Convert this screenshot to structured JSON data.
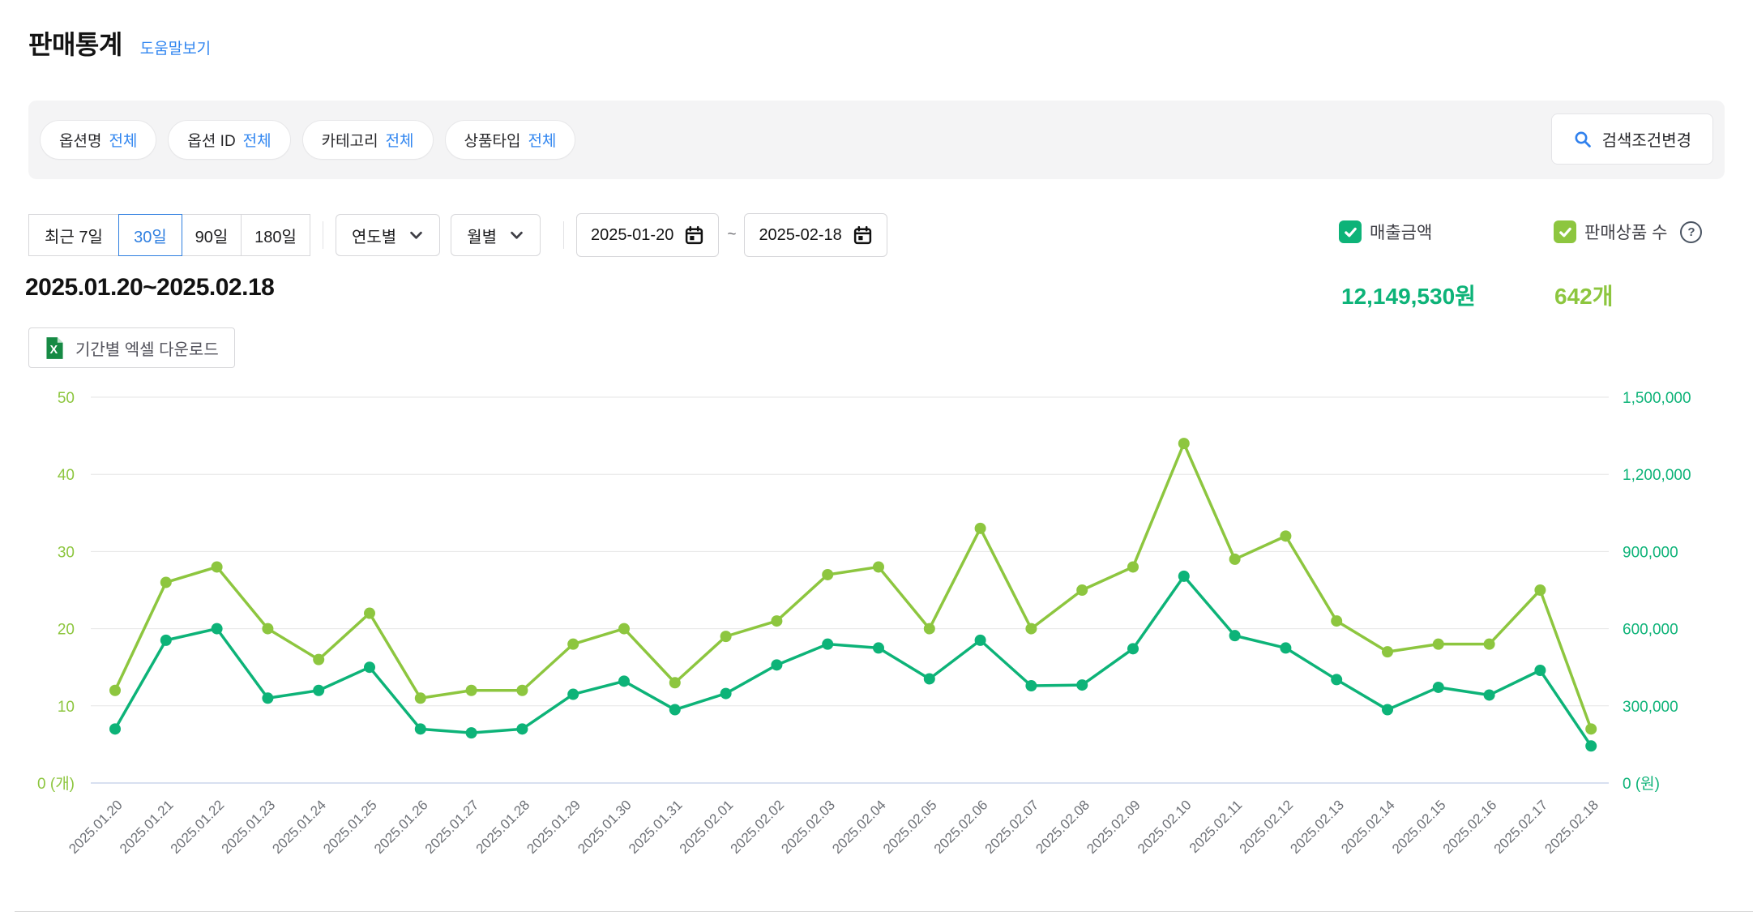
{
  "page": {
    "title": "판매통계",
    "help_link": "도움말보기"
  },
  "filters": {
    "pills": [
      {
        "label": "옵션명",
        "value": "전체"
      },
      {
        "label": "옵션 ID",
        "value": "전체"
      },
      {
        "label": "카테고리",
        "value": "전체"
      },
      {
        "label": "상품타입",
        "value": "전체"
      }
    ],
    "search_button": "검색조건변경"
  },
  "period": {
    "buttons": [
      "최근 7일",
      "30일",
      "90일",
      "180일"
    ],
    "selected": "30일",
    "dropdowns": [
      {
        "label": "연도별"
      },
      {
        "label": "월별"
      }
    ],
    "date_from": "2025-01-20",
    "date_to": "2025-02-18",
    "range_separator": "~"
  },
  "legend": {
    "revenue": {
      "label": "매출금액",
      "checked": true,
      "color": "#0db378"
    },
    "items_sold": {
      "label": "판매상품 수",
      "checked": true,
      "color": "#8dc63f"
    }
  },
  "summary": {
    "date_range": "2025.01.20~2025.02.18",
    "revenue_total": "12,149,530원",
    "items_total": "642개"
  },
  "excel_button": "기간별 엑셀 다운로드",
  "chart_data": {
    "type": "line",
    "grid": true,
    "x": [
      "2025.01.20",
      "2025.01.21",
      "2025.01.22",
      "2025.01.23",
      "2025.01.24",
      "2025.01.25",
      "2025.01.26",
      "2025.01.27",
      "2025.01.28",
      "2025.01.29",
      "2025.01.30",
      "2025.01.31",
      "2025.02.01",
      "2025.02.02",
      "2025.02.03",
      "2025.02.04",
      "2025.02.05",
      "2025.02.06",
      "2025.02.07",
      "2025.02.08",
      "2025.02.09",
      "2025.02.10",
      "2025.02.11",
      "2025.02.12",
      "2025.02.13",
      "2025.02.14",
      "2025.02.15",
      "2025.02.16",
      "2025.02.17",
      "2025.02.18"
    ],
    "series": [
      {
        "name": "매출금액",
        "axis": "right",
        "color": "#0db378",
        "values": [
          210000,
          555000,
          600000,
          330000,
          360000,
          450000,
          210000,
          195000,
          210000,
          345000,
          396000,
          285000,
          348000,
          459000,
          540000,
          525000,
          405000,
          555000,
          378000,
          381000,
          522000,
          804000,
          573000,
          525000,
          402000,
          285000,
          372000,
          342000,
          438000,
          144000
        ]
      },
      {
        "name": "판매상품 수",
        "axis": "left",
        "color": "#8dc63f",
        "values": [
          12,
          26,
          28,
          20,
          16,
          22,
          11,
          12,
          12,
          18,
          20,
          13,
          19,
          21,
          27,
          28,
          20,
          33,
          20,
          25,
          28,
          44,
          29,
          32,
          21,
          17,
          18,
          18,
          25,
          7
        ]
      }
    ],
    "left_axis": {
      "unit": "개",
      "min": 0,
      "max": 50,
      "color": "#8dc63f",
      "ticks": [
        "0 (개)",
        "10",
        "20",
        "30",
        "40",
        "50"
      ]
    },
    "right_axis": {
      "unit": "원",
      "min": 0,
      "max": 1500000,
      "color": "#0db378",
      "ticks": [
        "0 (원)",
        "300,000",
        "600,000",
        "900,000",
        "1,200,000",
        "1,500,000"
      ]
    },
    "legend_position": "none"
  }
}
